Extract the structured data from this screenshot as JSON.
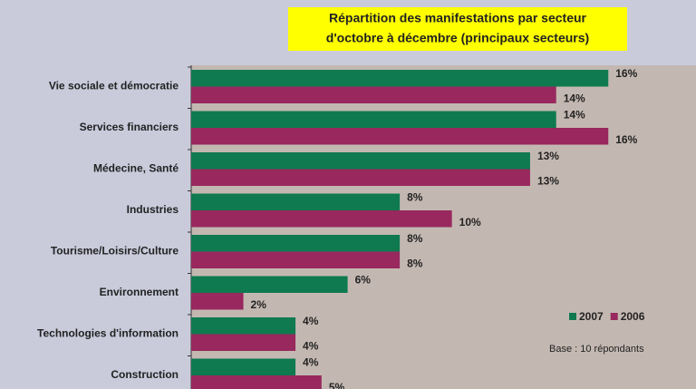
{
  "chart_data": {
    "type": "hbar",
    "title": [
      "Répartition des manifestations par secteur",
      "d'octobre à décembre (principaux secteurs)"
    ],
    "note": "Base : 10 répondants",
    "categories": [
      "Vie sociale et démocratie",
      "Services financiers",
      "Médecine, Santé",
      "Industries",
      "Tourisme/Loisirs/Culture",
      "Environnement",
      "Technologies d'information",
      "Construction"
    ],
    "series": [
      {
        "name": "2007",
        "color": "#0f7a50",
        "values": [
          16,
          14,
          13,
          8,
          8,
          6,
          4,
          4
        ],
        "value_labels": [
          "16%",
          "14%",
          "13%",
          "8%",
          "8%",
          "6%",
          "4%",
          "4%"
        ]
      },
      {
        "name": "2006",
        "color": "#98285e",
        "values": [
          14,
          16,
          13,
          10,
          8,
          2,
          4,
          5
        ],
        "value_labels": [
          "14%",
          "16%",
          "13%",
          "10%",
          "8%",
          "2%",
          "4%",
          "5%"
        ]
      }
    ],
    "xlim": [
      0,
      17
    ],
    "legend": "lower right"
  }
}
